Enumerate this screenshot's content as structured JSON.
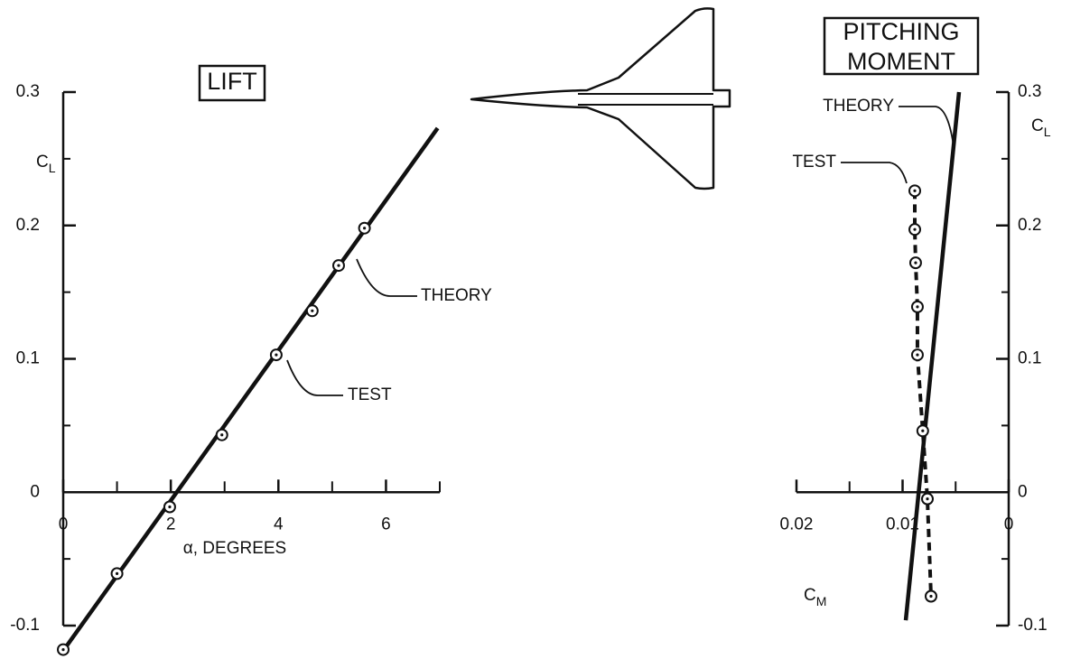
{
  "chart_data": [
    {
      "type": "line",
      "title": [
        "LIFT"
      ],
      "xlabel": "α, DEGREES",
      "ylabel": {
        "symbol": "C",
        "subscript": "L"
      },
      "xlim": [
        0,
        7
      ],
      "xticks": [
        0,
        2,
        4,
        6
      ],
      "xminor_ticks": [
        1,
        3,
        5,
        7
      ],
      "ylim": [
        -0.1,
        0.3
      ],
      "yticks": [
        0.3,
        0.2,
        0.1,
        0,
        -0.1
      ],
      "yminor_ticks": [
        0.25,
        0.15,
        0.05,
        -0.05
      ],
      "series": [
        {
          "name": "THEORY",
          "color": "#111111",
          "style": "solid",
          "x": [
            0.05,
            6.96
          ],
          "values": [
            -0.116,
            0.273
          ]
        },
        {
          "name": "TEST",
          "color": "#111111",
          "style": "markers",
          "x": [
            0,
            1.0,
            1.98,
            2.95,
            3.96,
            4.63,
            5.12,
            5.6
          ],
          "values": [
            -0.118,
            -0.061,
            -0.011,
            0.043,
            0.103,
            0.136,
            0.17,
            0.198
          ]
        }
      ]
    },
    {
      "type": "line",
      "title": [
        "PITCHING",
        "MOMENT"
      ],
      "xlabel": {
        "symbol": "C",
        "subscript": "M"
      },
      "ylabel": {
        "symbol": "C",
        "subscript": "L"
      },
      "xlim": [
        0.02,
        0
      ],
      "xticks": [
        0.02,
        0.01,
        0
      ],
      "xminor_ticks": [
        0.015,
        0.005
      ],
      "ylim": [
        -0.1,
        0.3
      ],
      "yticks": [
        0.3,
        0.2,
        0.1,
        0,
        -0.1
      ],
      "yminor_ticks": [
        0.25,
        0.15,
        0.05,
        -0.05
      ],
      "series": [
        {
          "name": "THEORY",
          "color": "#111111",
          "style": "solid",
          "x": [
            0.0097,
            0.00468
          ],
          "values": [
            -0.096,
            0.3
          ]
        },
        {
          "name": "TEST",
          "color": "#111111",
          "style": "dashed-markers",
          "x": [
            0.00885,
            0.00885,
            0.00877,
            0.0086,
            0.0086,
            0.0081,
            0.00766,
            0.00732
          ],
          "values": [
            0.226,
            0.197,
            0.172,
            0.139,
            0.103,
            0.046,
            -0.005,
            -0.078
          ]
        }
      ]
    }
  ]
}
